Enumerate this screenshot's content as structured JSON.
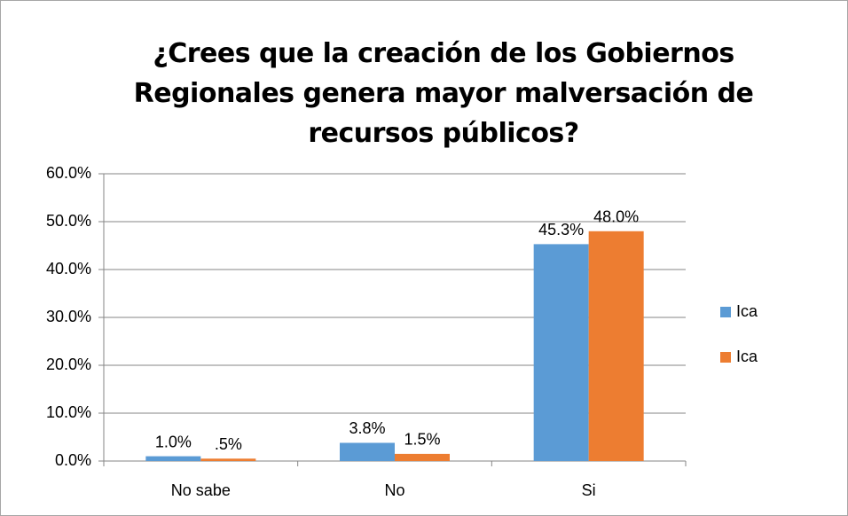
{
  "chart_data": {
    "type": "bar",
    "title": "¿Crees que la creación de los Gobiernos Regionales genera mayor malversación de recursos públicos?",
    "categories": [
      "No sabe",
      "No",
      "Si"
    ],
    "series": [
      {
        "name": "Ica",
        "color": "#5b9bd5",
        "values": [
          1.0,
          3.8,
          45.3
        ],
        "value_labels": [
          "1.0%",
          "3.8%",
          "45.3%"
        ]
      },
      {
        "name": "Ica",
        "color": "#ed7d31",
        "values": [
          0.5,
          1.5,
          48.0
        ],
        "value_labels": [
          ".5%",
          "1.5%",
          "48.0%"
        ]
      }
    ],
    "ylim": [
      0,
      60
    ],
    "yticks": [
      {
        "value": 0,
        "label": "0.0%"
      },
      {
        "value": 10,
        "label": "10.0%"
      },
      {
        "value": 20,
        "label": "20.0%"
      },
      {
        "value": 30,
        "label": "30.0%"
      },
      {
        "value": 40,
        "label": "40.0%"
      },
      {
        "value": 50,
        "label": "50.0%"
      },
      {
        "value": 60,
        "label": "60.0%"
      }
    ],
    "grid": true,
    "legend": "right"
  }
}
